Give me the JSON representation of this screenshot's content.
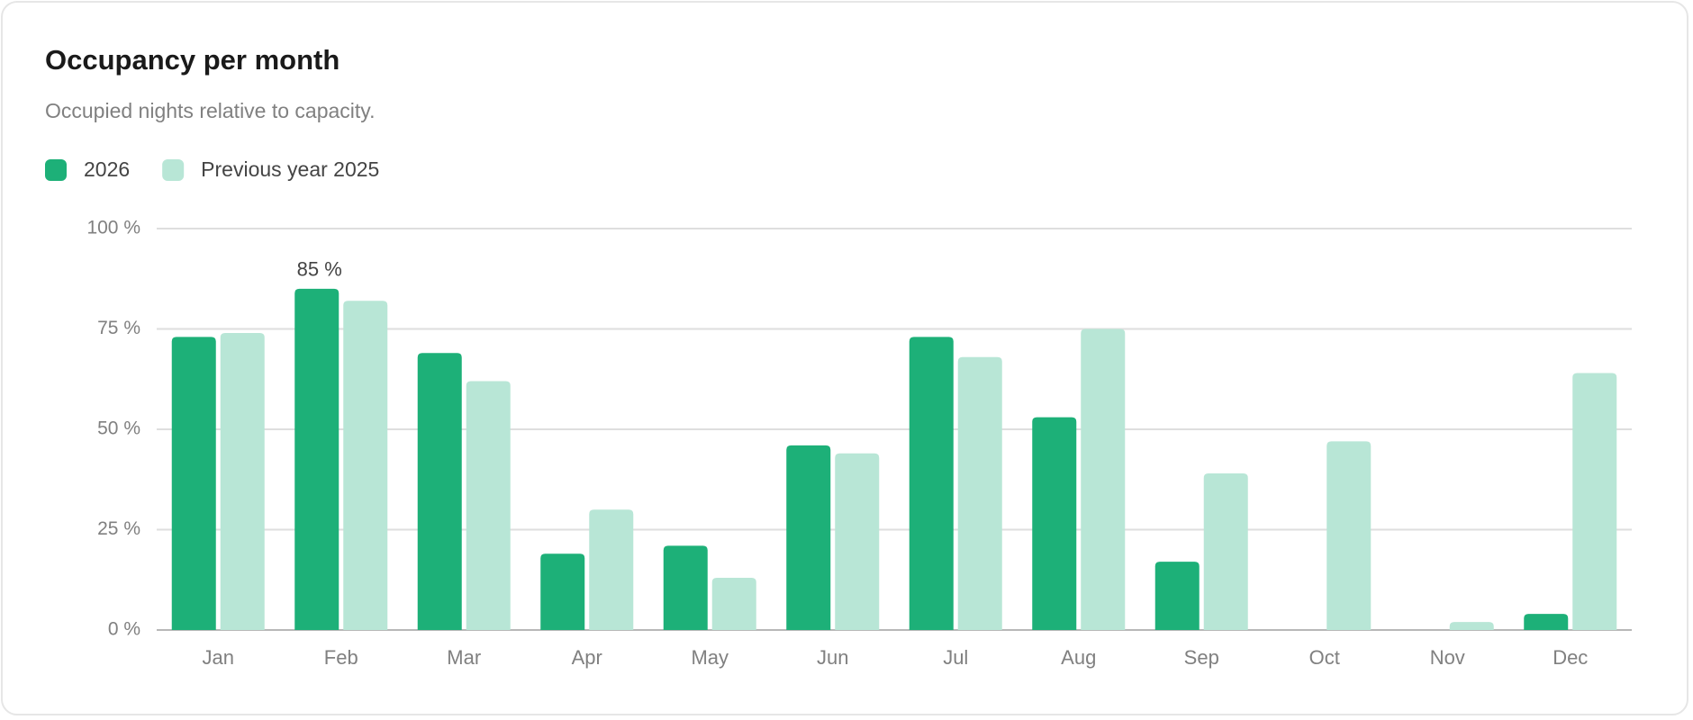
{
  "chart_data": {
    "type": "bar",
    "title": "Occupancy per month",
    "subtitle": "Occupied nights relative to capacity.",
    "categories": [
      "Jan",
      "Feb",
      "Mar",
      "Apr",
      "May",
      "Jun",
      "Jul",
      "Aug",
      "Sep",
      "Oct",
      "Nov",
      "Dec"
    ],
    "series": [
      {
        "name": "2026",
        "color": "#1db078",
        "values": [
          73,
          85,
          69,
          19,
          21,
          46,
          73,
          53,
          17,
          0,
          0,
          4
        ],
        "value_labels": [
          null,
          "85 %",
          null,
          null,
          null,
          null,
          null,
          null,
          null,
          null,
          null,
          null
        ]
      },
      {
        "name": "Previous year 2025",
        "color": "#b8e6d6",
        "values": [
          74,
          82,
          62,
          30,
          13,
          44,
          68,
          75,
          39,
          47,
          2,
          64
        ]
      }
    ],
    "ylim": [
      0,
      100
    ],
    "yticks": [
      {
        "value": 0,
        "label": "0 %"
      },
      {
        "value": 25,
        "label": "25 %"
      },
      {
        "value": 50,
        "label": "50 %"
      },
      {
        "value": 75,
        "label": "75 %"
      },
      {
        "value": 100,
        "label": "100 %"
      }
    ],
    "grid": true,
    "legend": "top-left"
  }
}
